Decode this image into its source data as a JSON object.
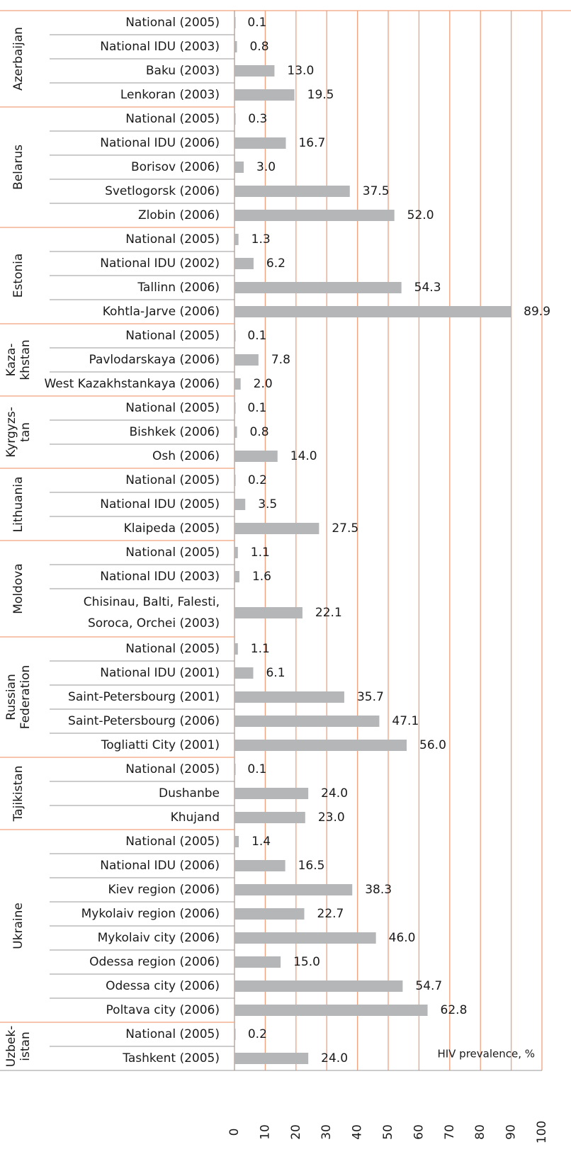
{
  "chart_data": {
    "type": "bar",
    "x_label": "HIV prevalence, %",
    "xlim": [
      0,
      100
    ],
    "xticks": [
      0,
      10,
      20,
      30,
      40,
      50,
      60,
      70,
      80,
      90,
      100
    ],
    "grid": true,
    "color": "#b5b6b8",
    "grid_color": "#f2a07e",
    "groups": [
      {
        "name": "Azerbaijan",
        "categories": [
          "National (2005)",
          "National IDU (2003)",
          "Baku (2003)",
          "Lenkoran (2003)"
        ],
        "values": [
          0.1,
          0.8,
          13,
          19.5
        ],
        "value_labels": [
          "0.1",
          "0.8",
          "13.0",
          "19.5"
        ]
      },
      {
        "name": "Belarus",
        "categories": [
          "National (2005)",
          "National IDU (2006)",
          "Borisov (2006)",
          "Svetlogorsk (2006)",
          "Zlobin (2006)"
        ],
        "values": [
          0.3,
          16.7,
          3,
          37.5,
          52
        ],
        "value_labels": [
          "0.3",
          "16.7",
          "3.0",
          "37.5",
          "52.0"
        ]
      },
      {
        "name": "Estonia",
        "categories": [
          "National (2005)",
          "National IDU (2002)",
          "Tallinn (2006)",
          "Kohtla-Jarve (2006)"
        ],
        "values": [
          1.3,
          6.2,
          54.3,
          89.9
        ],
        "value_labels": [
          "1.3",
          "6.2",
          "54.3",
          "89.9"
        ]
      },
      {
        "name": [
          "Kaza-",
          "khstan"
        ],
        "categories": [
          "National (2005)",
          "Pavlodarskaya (2006)",
          "West Kazakhstankaya (2006)"
        ],
        "values": [
          0.1,
          7.8,
          2
        ],
        "value_labels": [
          "0.1",
          "7.8",
          "2.0"
        ]
      },
      {
        "name": [
          "Kyrgyzs-",
          "tan"
        ],
        "categories": [
          "National (2005)",
          "Bishkek (2006)",
          "Osh (2006)"
        ],
        "values": [
          0.1,
          0.8,
          14
        ],
        "value_labels": [
          "0.1",
          "0.8",
          "14.0"
        ]
      },
      {
        "name": "Lithuania",
        "categories": [
          "National (2005)",
          "National IDU (2005)",
          "Klaipeda (2005)"
        ],
        "values": [
          0.2,
          3.5,
          27.5
        ],
        "value_labels": [
          "0.2",
          "3.5",
          "27.5"
        ]
      },
      {
        "name": "Moldova",
        "categories": [
          "National (2005)",
          "National IDU (2003)",
          [
            "Chisinau, Balti, Falesti,",
            "Soroca, Orchei (2003)"
          ]
        ],
        "values": [
          1.1,
          1.6,
          22.1
        ],
        "value_labels": [
          "1.1",
          "1.6",
          "22.1"
        ]
      },
      {
        "name": [
          "Russian",
          "Federation"
        ],
        "categories": [
          "National (2005)",
          "National IDU (2001)",
          "Saint-Petersbourg (2001)",
          "Saint-Petersbourg (2006)",
          "Togliatti City (2001)"
        ],
        "values": [
          1.1,
          6.1,
          35.7,
          47.1,
          56
        ],
        "value_labels": [
          "1.1",
          "6.1",
          "35.7",
          "47.1",
          "56.0"
        ]
      },
      {
        "name": "Tajikistan",
        "categories": [
          "National (2005)",
          "Dushanbe",
          "Khujand"
        ],
        "values": [
          0.1,
          24,
          23
        ],
        "value_labels": [
          "0.1",
          "24.0",
          "23.0"
        ]
      },
      {
        "name": "Ukraine",
        "categories": [
          "National (2005)",
          "National IDU (2006)",
          "Kiev region (2006)",
          "Mykolaiv region (2006)",
          "Mykolaiv city (2006)",
          "Odessa region (2006)",
          "Odessa city (2006)",
          "Poltava city (2006)"
        ],
        "values": [
          1.4,
          16.5,
          38.3,
          22.7,
          46,
          15,
          54.7,
          62.8
        ],
        "value_labels": [
          "1.4",
          "16.5",
          "38.3",
          "22.7",
          "46.0",
          "15.0",
          "54.7",
          "62.8"
        ]
      },
      {
        "name": [
          "Uzbek-",
          "istan"
        ],
        "categories": [
          "National (2005)",
          "Tashkent (2005)"
        ],
        "values": [
          0.2,
          24
        ],
        "value_labels": [
          "0.2",
          "24.0"
        ]
      }
    ]
  }
}
